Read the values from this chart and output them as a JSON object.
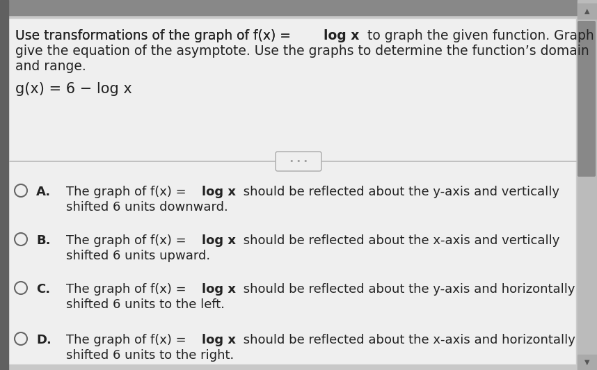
{
  "bg_color": "#c8c8c8",
  "panel_color": "#efefef",
  "top_bar_color": "#aaaaaa",
  "divider_color": "#b8b8b8",
  "text_color": "#222222",
  "left_bar_color": "#606060",
  "right_scroll_bg": "#bbbbbb",
  "right_scroll_thumb": "#888888",
  "circle_edge_color": "#666666",
  "q_font_size": 13.5,
  "opt_font_size": 13.0,
  "func_font_size": 15.0,
  "options": [
    {
      "letter": "A.",
      "pre": "The graph of f(x) = ",
      "bold": "log x",
      "post": " should be reflected about the y-axis and vertically",
      "line2": "shifted 6 units downward."
    },
    {
      "letter": "B.",
      "pre": "The graph of f(x) = ",
      "bold": "log x",
      "post": " should be reflected about the x-axis and vertically",
      "line2": "shifted 6 units upward."
    },
    {
      "letter": "C.",
      "pre": "The graph of f(x) = ",
      "bold": "log x",
      "post": " should be reflected about the y-axis and horizontally",
      "line2": "shifted 6 units to the left."
    },
    {
      "letter": "D.",
      "pre": "The graph of f(x) = ",
      "bold": "log x",
      "post": " should be reflected about the x-axis and horizontally",
      "line2": "shifted 6 units to the right."
    }
  ]
}
